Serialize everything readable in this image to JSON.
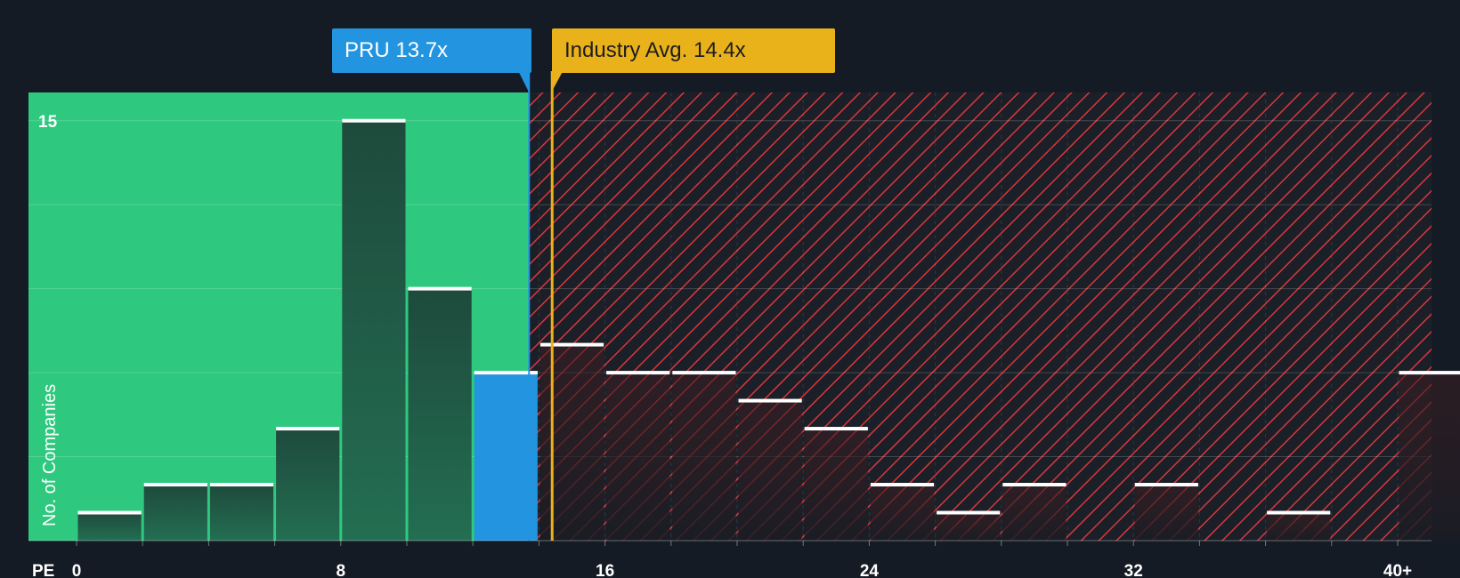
{
  "chart_data": {
    "type": "bar",
    "x_axis_label": "PE",
    "y_axis_label": "No. of Companies",
    "x_ticks": [
      "0",
      "8",
      "16",
      "24",
      "32",
      "40+"
    ],
    "y_ticks": [
      "15"
    ],
    "bin_width": 2,
    "bin_starts": [
      0,
      2,
      4,
      6,
      8,
      10,
      12,
      14,
      16,
      18,
      20,
      22,
      24,
      26,
      28,
      30,
      32,
      34,
      36,
      38,
      40
    ],
    "values": [
      1,
      2,
      2,
      4,
      15,
      9,
      6,
      7,
      6,
      6,
      5,
      4,
      2,
      1,
      2,
      0,
      2,
      0,
      1,
      0,
      6
    ],
    "ylim": [
      0,
      15.5
    ],
    "subject": {
      "label": "PRU 13.7x",
      "pe": 13.7
    },
    "industry_avg": {
      "label": "Industry Avg. 14.4x",
      "pe": 14.4
    },
    "colors": {
      "background": "#151b24",
      "undervalued_zone": "#2ec97e",
      "overvalued_hatch": "#d9363e",
      "bar_fill": "#1d4a3a",
      "bar_cap": "#ffffff",
      "subject": "#2394e0",
      "industry": "#e9b21b"
    }
  }
}
